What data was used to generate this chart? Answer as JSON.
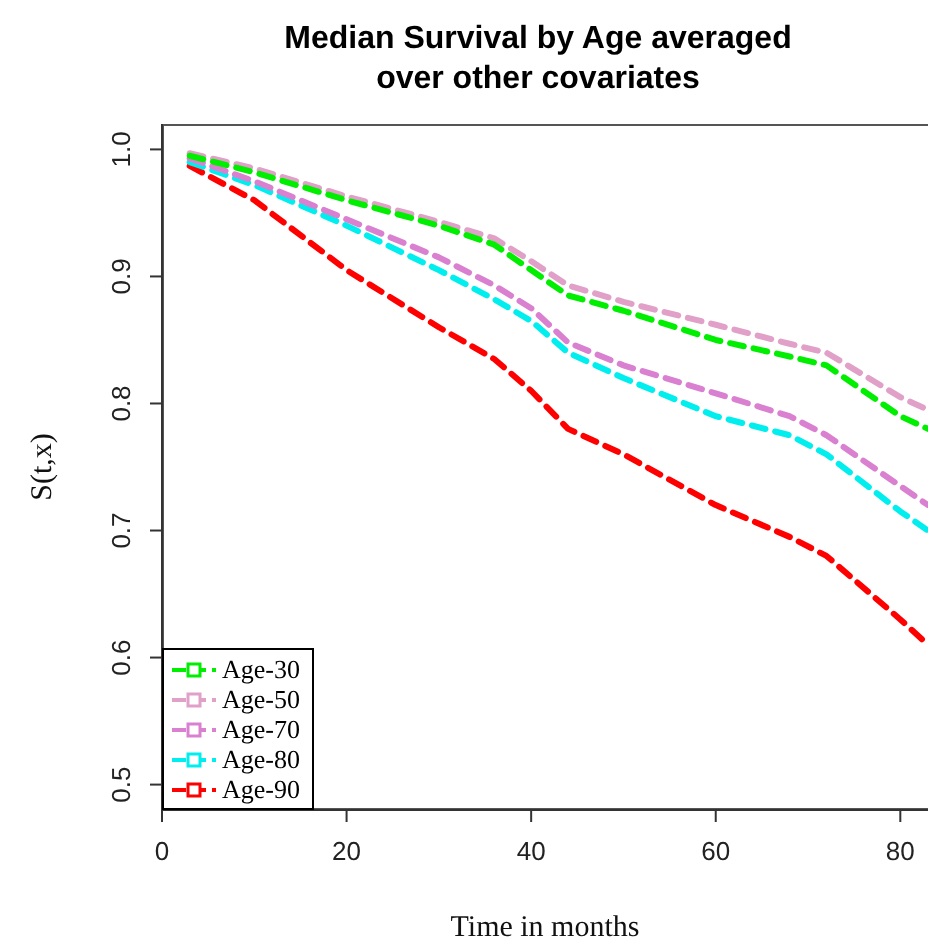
{
  "chart_data": {
    "type": "line",
    "title": "Median Survival by Age averaged over other covariates",
    "xlabel": "Time in months",
    "ylabel": "S(t,x)",
    "x": [
      3,
      10,
      20,
      30,
      36,
      40,
      44,
      50,
      60,
      68,
      72,
      80,
      83
    ],
    "series": [
      {
        "name": "Age-30",
        "color": "#00ee00",
        "values": [
          0.995,
          0.982,
          0.96,
          0.94,
          0.925,
          0.905,
          0.885,
          0.873,
          0.85,
          0.837,
          0.83,
          0.79,
          0.78
        ]
      },
      {
        "name": "Age-50",
        "color": "#e0a0c8",
        "values": [
          0.997,
          0.985,
          0.963,
          0.943,
          0.93,
          0.912,
          0.893,
          0.88,
          0.862,
          0.847,
          0.84,
          0.805,
          0.795
        ]
      },
      {
        "name": "Age-70",
        "color": "#da80d0",
        "values": [
          0.993,
          0.975,
          0.945,
          0.915,
          0.893,
          0.875,
          0.848,
          0.83,
          0.808,
          0.79,
          0.775,
          0.735,
          0.72
        ]
      },
      {
        "name": "Age-80",
        "color": "#00eeee",
        "values": [
          0.99,
          0.972,
          0.94,
          0.905,
          0.882,
          0.865,
          0.84,
          0.82,
          0.79,
          0.775,
          0.76,
          0.715,
          0.7
        ]
      },
      {
        "name": "Age-90",
        "color": "#ff0000",
        "values": [
          0.987,
          0.96,
          0.905,
          0.86,
          0.835,
          0.81,
          0.78,
          0.76,
          0.72,
          0.695,
          0.68,
          0.63,
          0.61
        ]
      }
    ],
    "xlim": [
      0,
      83
    ],
    "xticks": [
      0,
      20,
      40,
      60,
      80
    ],
    "ylim": [
      0.48,
      1.02
    ],
    "yticks": [
      0.5,
      0.6,
      0.7,
      0.8,
      0.9,
      {
        "value": 1,
        "label": "1.0"
      }
    ],
    "line_style": "dashed",
    "legend": "bottom left",
    "grid": false
  }
}
